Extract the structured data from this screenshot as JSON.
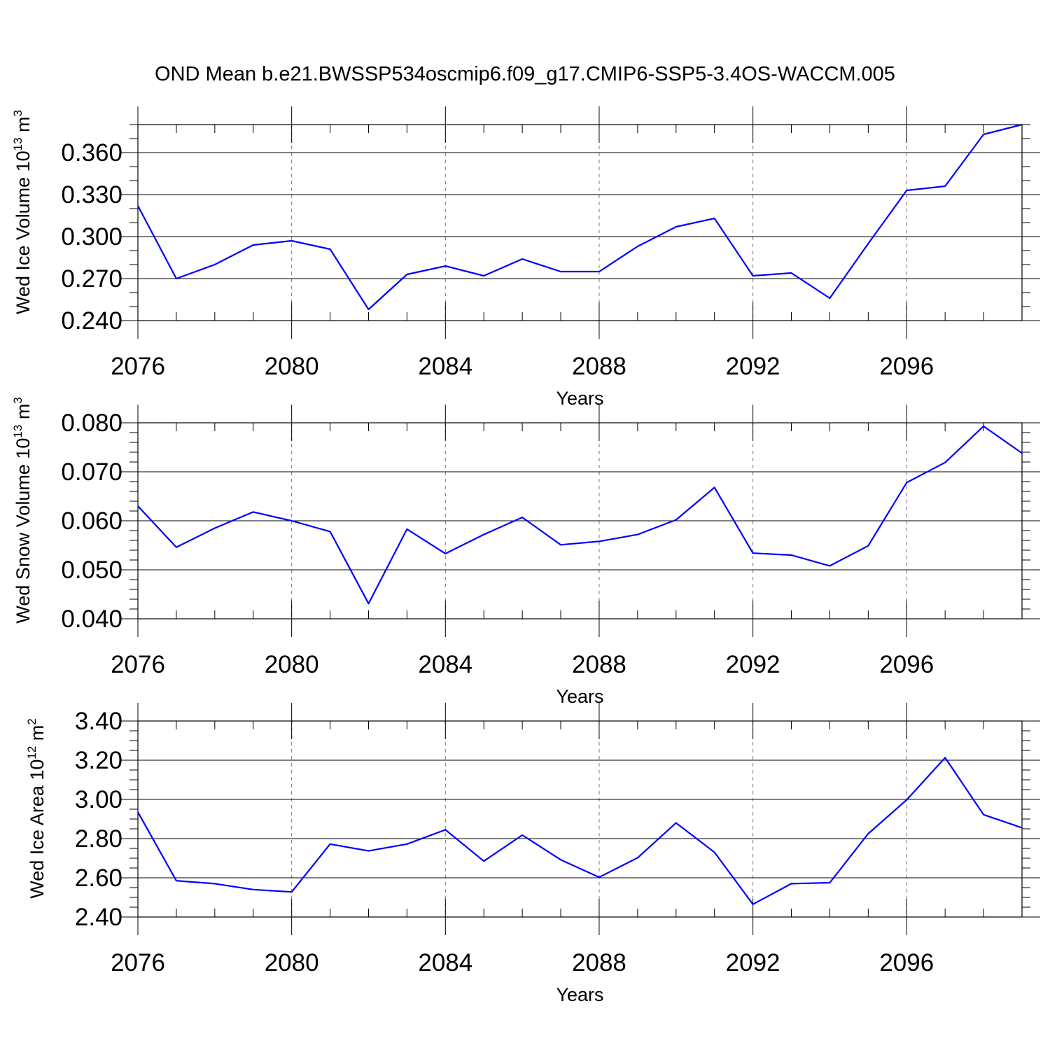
{
  "title": "OND Mean b.e21.BWSSP534oscmip6.f09_g17.CMIP6-SSP5-3.4OS-WACCM.005",
  "line_color": "#0000ff",
  "chart_data": [
    {
      "type": "line",
      "ylabel_main": "Wed Ice Volume 10",
      "ylabel_exp": "13",
      "ylabel_unit": " m",
      "ylabel_unit_exp": "3",
      "xlabel": "Years",
      "xlim": [
        2076,
        2099
      ],
      "ylim": [
        0.24,
        0.38
      ],
      "x_ticks": [
        2076,
        2080,
        2084,
        2088,
        2092,
        2096
      ],
      "x_tick_labels": [
        "2076",
        "2080",
        "2084",
        "2088",
        "2092",
        "2096"
      ],
      "y_ticks": [
        0.24,
        0.27,
        0.3,
        0.33,
        0.36
      ],
      "y_tick_labels": [
        "0.240",
        "0.270",
        "0.300",
        "0.330",
        "0.360"
      ],
      "y_minor_step": 0.01,
      "x": [
        2076,
        2077,
        2078,
        2079,
        2080,
        2081,
        2082,
        2083,
        2084,
        2085,
        2086,
        2087,
        2088,
        2089,
        2090,
        2091,
        2092,
        2093,
        2094,
        2095,
        2096,
        2097,
        2098,
        2099
      ],
      "values": [
        0.322,
        0.27,
        0.28,
        0.294,
        0.297,
        0.291,
        0.248,
        0.273,
        0.279,
        0.272,
        0.284,
        0.275,
        0.275,
        0.293,
        0.307,
        0.313,
        0.272,
        0.274,
        0.256,
        0.295,
        0.333,
        0.336,
        0.373,
        0.38
      ]
    },
    {
      "type": "line",
      "ylabel_main": "Wed Snow Volume 10",
      "ylabel_exp": "13",
      "ylabel_unit": " m",
      "ylabel_unit_exp": "3",
      "xlabel": "Years",
      "xlim": [
        2076,
        2099
      ],
      "ylim": [
        0.04,
        0.08
      ],
      "x_ticks": [
        2076,
        2080,
        2084,
        2088,
        2092,
        2096
      ],
      "x_tick_labels": [
        "2076",
        "2080",
        "2084",
        "2088",
        "2092",
        "2096"
      ],
      "y_ticks": [
        0.04,
        0.05,
        0.06,
        0.07,
        0.08
      ],
      "y_tick_labels": [
        "0.040",
        "0.050",
        "0.060",
        "0.070",
        "0.080"
      ],
      "y_minor_step": 0.002,
      "x": [
        2076,
        2077,
        2078,
        2079,
        2080,
        2081,
        2082,
        2083,
        2084,
        2085,
        2086,
        2087,
        2088,
        2089,
        2090,
        2091,
        2092,
        2093,
        2094,
        2095,
        2096,
        2097,
        2098,
        2099
      ],
      "values": [
        0.063,
        0.0546,
        0.0585,
        0.0618,
        0.06,
        0.0578,
        0.0431,
        0.0583,
        0.0533,
        0.0572,
        0.0607,
        0.0551,
        0.0558,
        0.0572,
        0.0602,
        0.0668,
        0.0534,
        0.053,
        0.0508,
        0.0549,
        0.0678,
        0.0719,
        0.0793,
        0.0738
      ]
    },
    {
      "type": "line",
      "ylabel_main": "Wed Ice Area 10",
      "ylabel_exp": "12",
      "ylabel_unit": " m",
      "ylabel_unit_exp": "2",
      "xlabel": "Years",
      "xlim": [
        2076,
        2099
      ],
      "ylim": [
        2.4,
        3.4
      ],
      "x_ticks": [
        2076,
        2080,
        2084,
        2088,
        2092,
        2096
      ],
      "x_tick_labels": [
        "2076",
        "2080",
        "2084",
        "2088",
        "2092",
        "2096"
      ],
      "y_ticks": [
        2.4,
        2.6,
        2.8,
        3.0,
        3.2,
        3.4
      ],
      "y_tick_labels": [
        "2.40",
        "2.60",
        "2.80",
        "3.00",
        "3.20",
        "3.40"
      ],
      "y_minor_step": 0.05,
      "x": [
        2076,
        2077,
        2078,
        2079,
        2080,
        2081,
        2082,
        2083,
        2084,
        2085,
        2086,
        2087,
        2088,
        2089,
        2090,
        2091,
        2092,
        2093,
        2094,
        2095,
        2096,
        2097,
        2098,
        2099
      ],
      "values": [
        2.935,
        2.585,
        2.57,
        2.54,
        2.528,
        2.772,
        2.737,
        2.772,
        2.845,
        2.685,
        2.818,
        2.692,
        2.603,
        2.702,
        2.88,
        2.73,
        2.465,
        2.57,
        2.575,
        2.825,
        2.998,
        3.213,
        2.922,
        2.855
      ]
    }
  ]
}
